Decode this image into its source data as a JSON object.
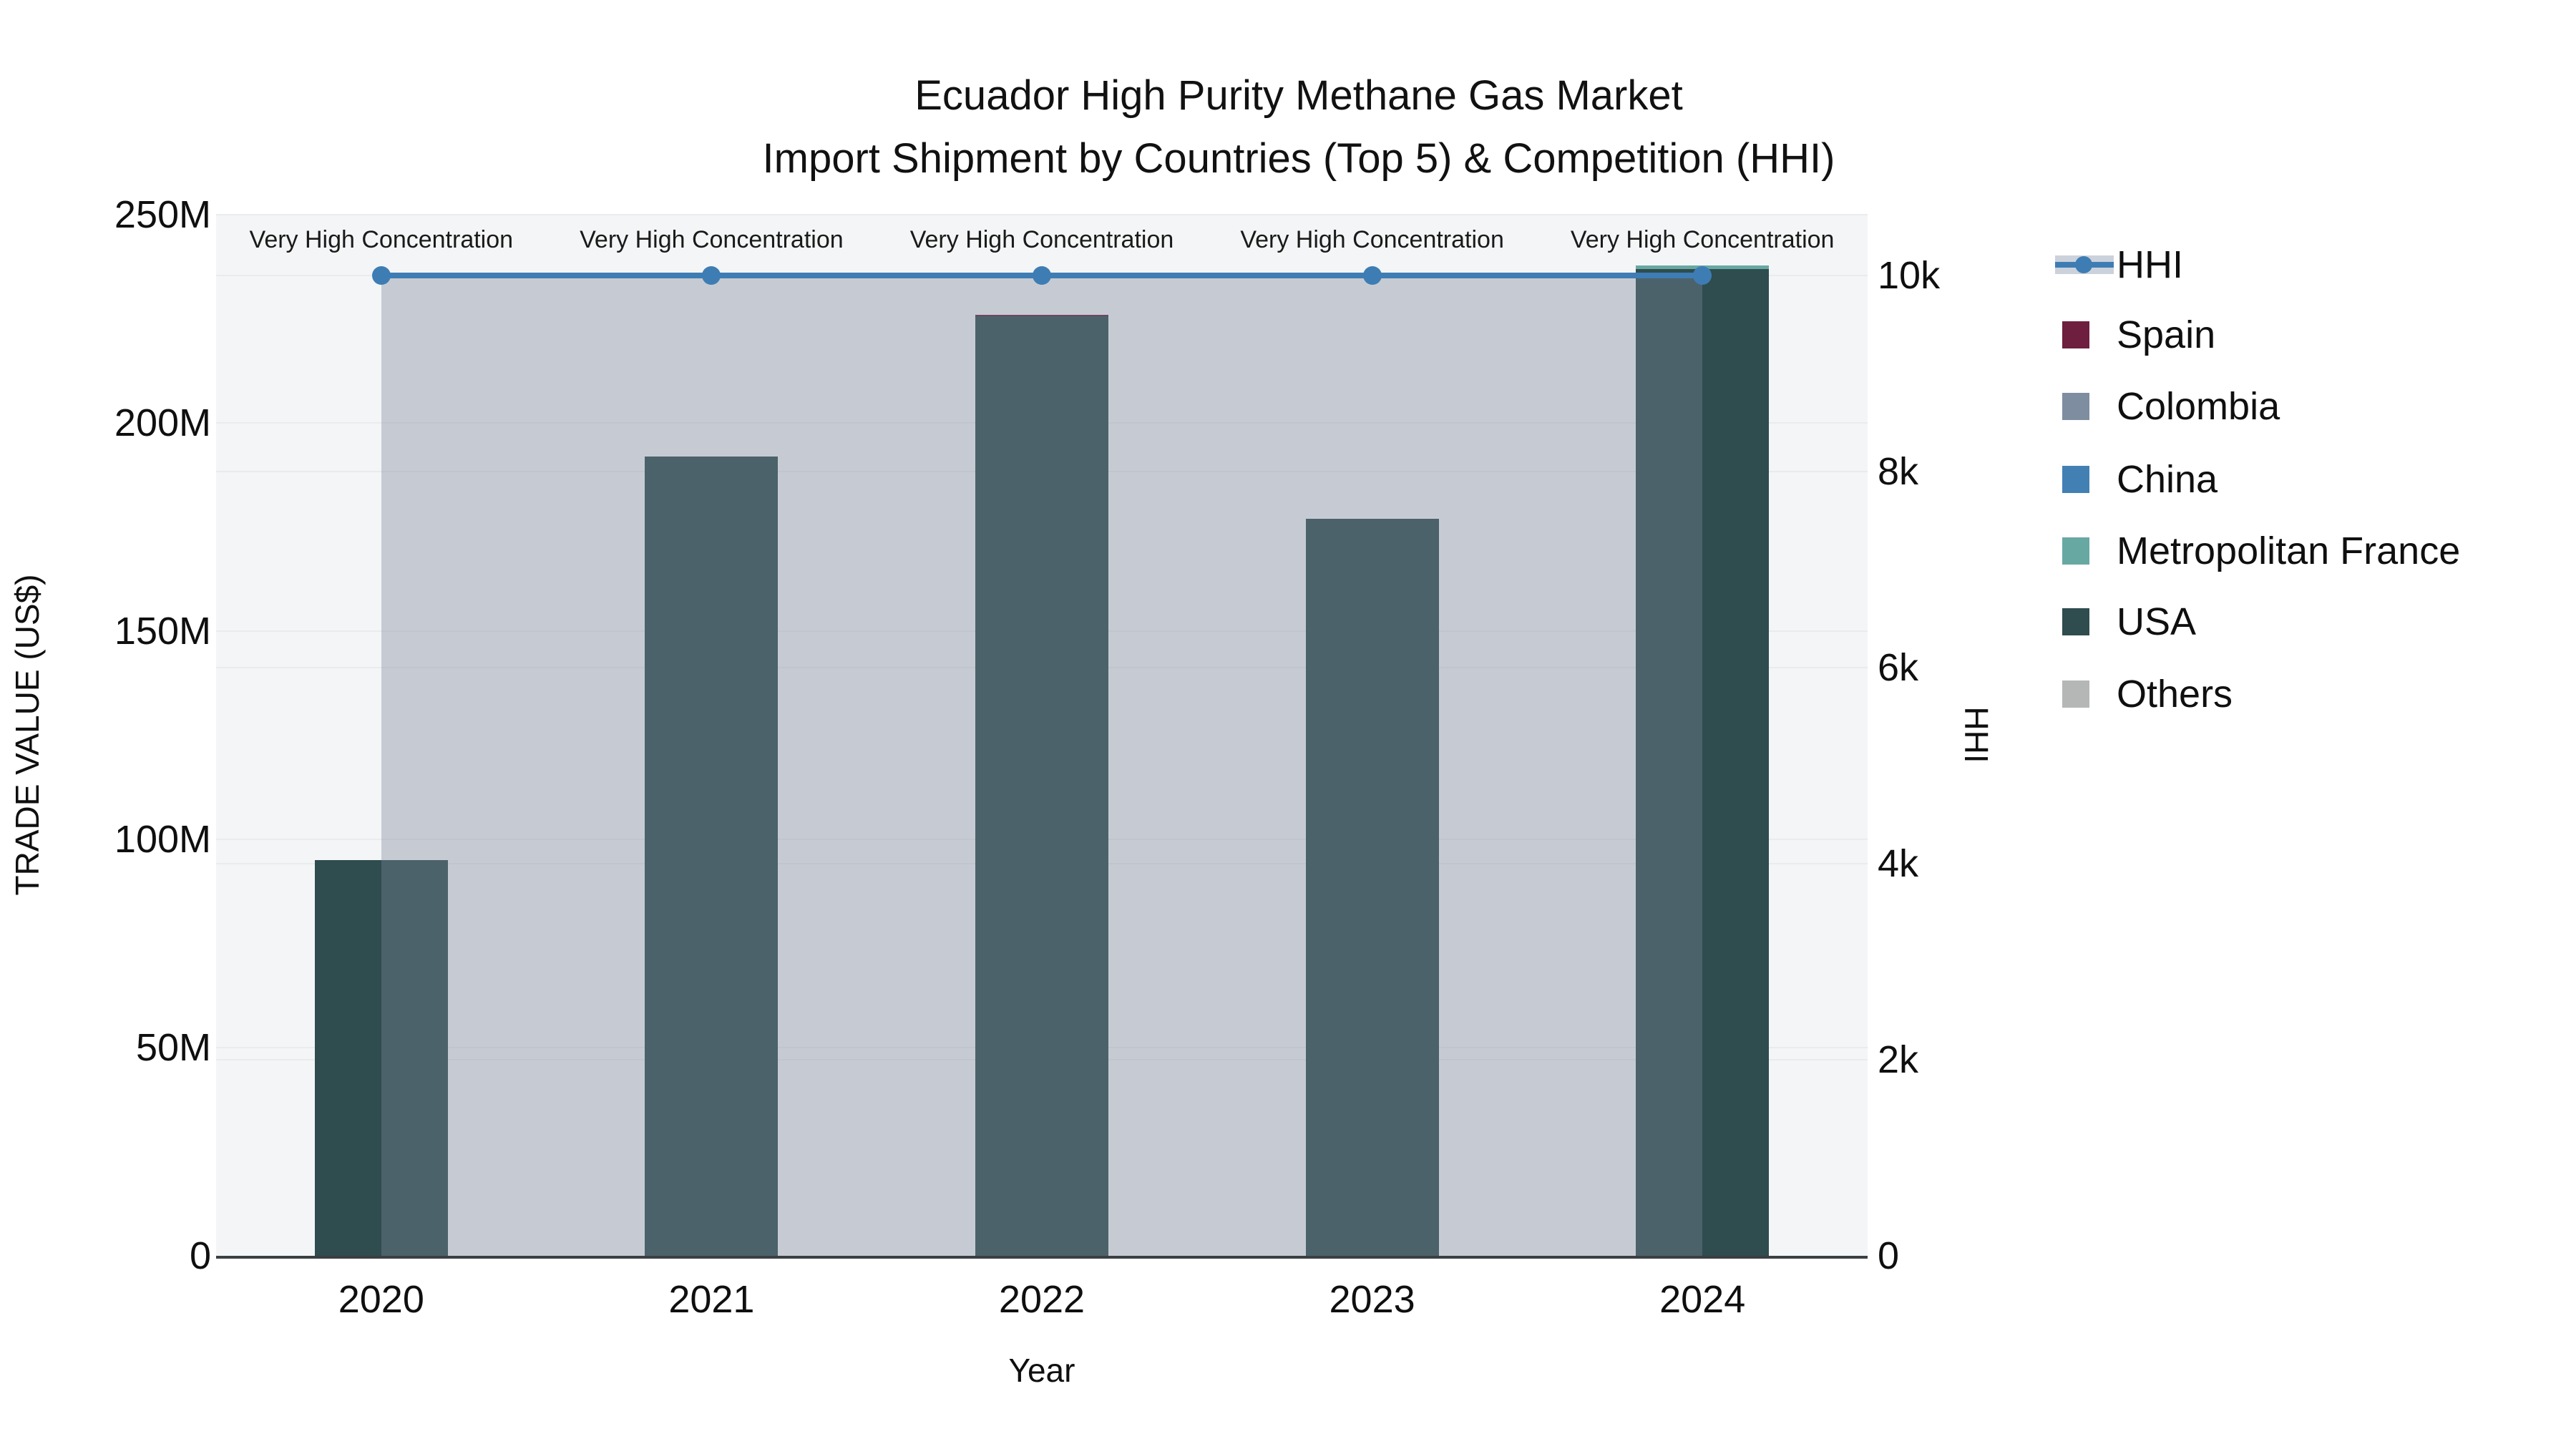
{
  "title": {
    "line1": "Ecuador High Purity Methane Gas Market",
    "line2": "Import Shipment by Countries (Top 5) & Competition (HHI)"
  },
  "axes": {
    "left": {
      "title": "TRADE VALUE (US$)",
      "ticks": [
        {
          "label": "0",
          "value": 0
        },
        {
          "label": "50M",
          "value": 50
        },
        {
          "label": "100M",
          "value": 100
        },
        {
          "label": "150M",
          "value": 150
        },
        {
          "label": "200M",
          "value": 200
        },
        {
          "label": "250M",
          "value": 250
        }
      ]
    },
    "right": {
      "title": "HHI",
      "ticks": [
        {
          "label": "0",
          "value": 0
        },
        {
          "label": "2k",
          "value": 2000
        },
        {
          "label": "4k",
          "value": 4000
        },
        {
          "label": "6k",
          "value": 6000
        },
        {
          "label": "8k",
          "value": 8000
        },
        {
          "label": "10k",
          "value": 10000
        }
      ]
    },
    "x": {
      "title": "Year",
      "categories": [
        "2020",
        "2021",
        "2022",
        "2023",
        "2024"
      ]
    }
  },
  "legend": [
    {
      "label": "HHI",
      "type": "line",
      "color": "#3E7DB4"
    },
    {
      "label": "Spain",
      "type": "swatch",
      "color": "#6E1E3E"
    },
    {
      "label": "Colombia",
      "type": "swatch",
      "color": "#7E8DA0"
    },
    {
      "label": "China",
      "type": "swatch",
      "color": "#4280B4"
    },
    {
      "label": "Metropolitan France",
      "type": "swatch",
      "color": "#68A8A3"
    },
    {
      "label": "USA",
      "type": "swatch",
      "color": "#2F4C4E"
    },
    {
      "label": "Others",
      "type": "swatch",
      "color": "#B4B7B6"
    }
  ],
  "annotations": [
    {
      "year": "2020",
      "text": "Very High Concentration"
    },
    {
      "year": "2021",
      "text": "Very High Concentration"
    },
    {
      "year": "2022",
      "text": "Very High Concentration"
    },
    {
      "year": "2023",
      "text": "Very High Concentration"
    },
    {
      "year": "2024",
      "text": "Very High Concentration"
    }
  ],
  "chart_data": {
    "type": "bar+line",
    "title": "Ecuador High Purity Methane Gas Market — Import Shipment by Countries (Top 5) & Competition (HHI)",
    "x": [
      "2020",
      "2021",
      "2022",
      "2023",
      "2024"
    ],
    "xlabel": "Year",
    "ylabel_left": "TRADE VALUE (US$)",
    "ylabel_right": "HHI",
    "ylim_left_millions": [
      0,
      250
    ],
    "ylim_right": [
      0,
      10000
    ],
    "bar_mode": "stacked",
    "bar_units": "millions USD",
    "bar_series": [
      {
        "name": "Spain",
        "color": "#6E1E3E",
        "values": [
          0,
          0,
          0.4,
          0,
          0
        ]
      },
      {
        "name": "Colombia",
        "color": "#7E8DA0",
        "values": [
          0,
          0,
          0,
          0,
          0
        ]
      },
      {
        "name": "China",
        "color": "#4280B4",
        "values": [
          0,
          0,
          0,
          0,
          0
        ]
      },
      {
        "name": "Metropolitan France",
        "color": "#68A8A3",
        "values": [
          0,
          0,
          0,
          0,
          0.8
        ]
      },
      {
        "name": "USA",
        "color": "#2F4C4E",
        "values": [
          95,
          192,
          225.6,
          177,
          237
        ]
      },
      {
        "name": "Others",
        "color": "#B4B7B6",
        "values": [
          0,
          0,
          0,
          0,
          0
        ]
      }
    ],
    "line_series": {
      "name": "HHI",
      "color": "#3E7DB4",
      "fill_color": "rgba(124,135,154,0.38)",
      "values": [
        10000,
        10000,
        10000,
        10000,
        10000
      ]
    },
    "grid": true,
    "legend_position": "right",
    "plot_background": "#f4f5f6"
  },
  "colors": {
    "hhi_line": "#3E7DB4",
    "hhi_fill": "rgba(124,135,154,0.38)",
    "legend_band": "#ccd2db",
    "axis_line": "#3a3f42",
    "plot_bg": "#f4f5f6",
    "gridline": "#e9ebee"
  }
}
